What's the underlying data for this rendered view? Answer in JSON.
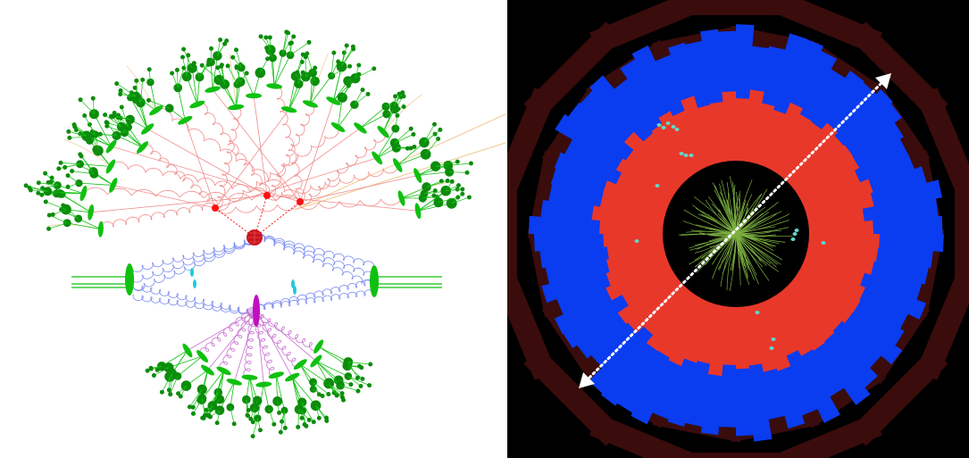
{
  "figure": {
    "left_panel": {
      "kind": "parton-shower-diagram",
      "colors": {
        "hard_blob": "#c8141e",
        "red_vertex": "#ff1010",
        "red_gluon": "#f08c8c",
        "blue_gluon": "#7c8cf0",
        "magenta_gluon": "#c870d0",
        "green_cluster": "#10c010",
        "hadron": "#0c8c0c",
        "cyan_remnant": "#20c8d8",
        "magenta_blob": "#c010c0",
        "photon": "#f0c890"
      }
    },
    "right_panel": {
      "kind": "detector-event-display",
      "colors": {
        "background": "#000000",
        "muon_chambers": "#3a0c0c",
        "hadronic_calorimeter": "#0a3cf0",
        "em_calorimeter": "#e8382a",
        "tracker_tracks": "#7cb040",
        "hits": "#60d8c8",
        "arrow": "#ffffff"
      }
    }
  }
}
